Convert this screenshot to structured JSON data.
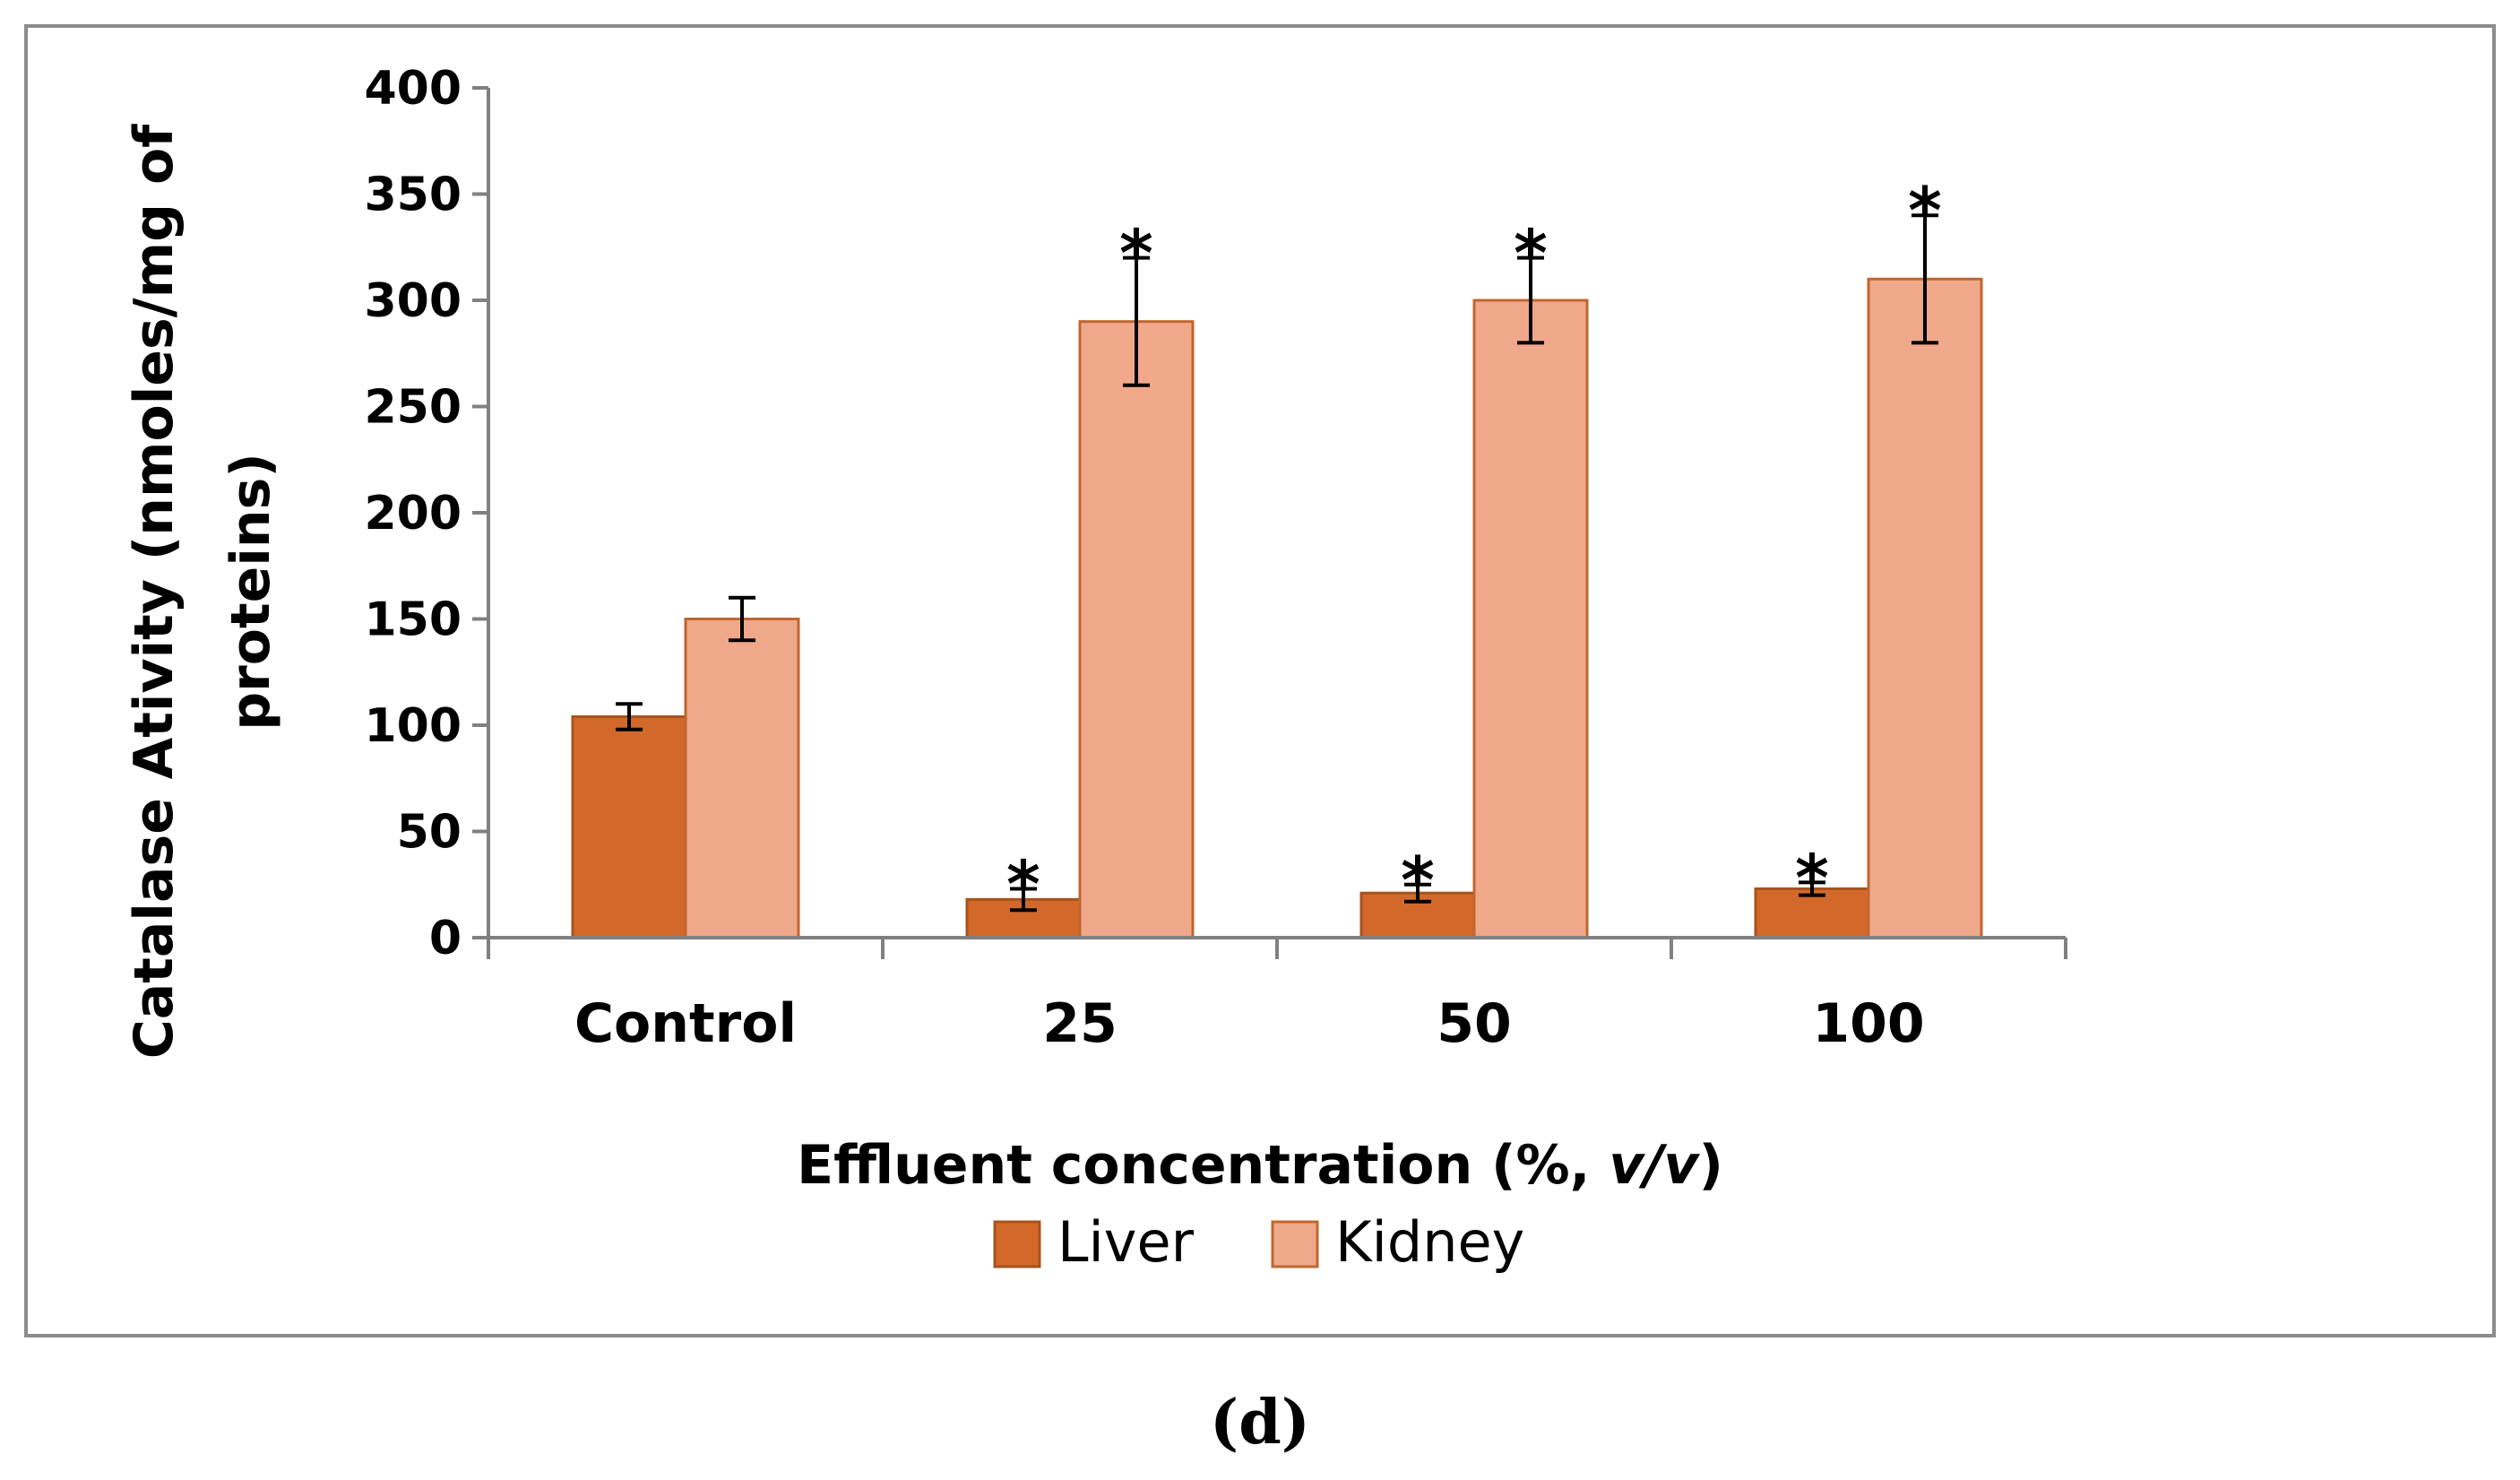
{
  "colors": {
    "liver": "#D2692B",
    "liver_edge": "#A8521C",
    "kidney": "#F0A88A",
    "kidney_edge": "#C0662E",
    "axis": "#808080",
    "frame": "#8c8c8c"
  },
  "chart_data": {
    "type": "bar",
    "title": "",
    "xlabel_prefix": "Effluent concentration (%, ",
    "xlabel_italic": "v/v",
    "xlabel_suffix": ")",
    "ylabel_line1": "Catalase Ativity (nmoles/mg of",
    "ylabel_line2": "proteins)",
    "categories": [
      "Control",
      "25",
      "50",
      "100"
    ],
    "series": [
      {
        "name": "Liver",
        "values": [
          104,
          18,
          21,
          23
        ],
        "errors": [
          6,
          5,
          4,
          3
        ],
        "significant": [
          false,
          true,
          true,
          true
        ]
      },
      {
        "name": "Kidney",
        "values": [
          150,
          290,
          300,
          310
        ],
        "errors": [
          10,
          30,
          20,
          30
        ],
        "significant": [
          false,
          true,
          true,
          true
        ]
      }
    ],
    "significance_marker": "*",
    "ylim": [
      0,
      400
    ],
    "yticks": [
      0,
      50,
      100,
      150,
      200,
      250,
      300,
      350,
      400
    ],
    "yticks_labels": [
      "0",
      "50",
      "100",
      "150",
      "200",
      "250",
      "300",
      "350",
      "400"
    ],
    "grid": false,
    "legend_position": "bottom-center"
  },
  "panel_label": "(d)"
}
